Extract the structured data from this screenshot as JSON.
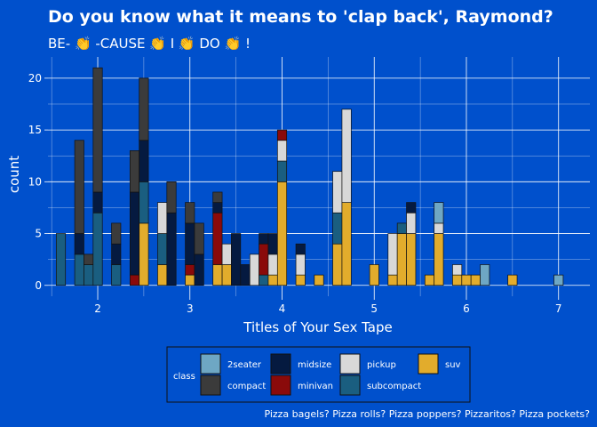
{
  "chart_data": {
    "type": "bar",
    "subtype": "stacked-histogram",
    "title": "Do you know what it means to 'clap back', Raymond?",
    "subtitle": "BE- 👏 -CAUSE 👏 I 👏 DO 👏 !",
    "xlabel": "Titles of Your Sex Tape",
    "ylabel": "count",
    "caption": "Pizza bagels? Pizza rolls? Pizza poppers? Pizzaritos? Pizza pockets?",
    "xlim": [
      1.46,
      7.34
    ],
    "ylim": [
      -1.05,
      22.05
    ],
    "x_ticks": [
      2,
      3,
      4,
      5,
      6,
      7
    ],
    "y_ticks": [
      0,
      5,
      10,
      15,
      20
    ],
    "grid": true,
    "binwidth": 0.1,
    "legend": {
      "title": "class",
      "position": "bottom",
      "entries": [
        "2seater",
        "compact",
        "midsize",
        "minivan",
        "pickup",
        "subcompact",
        "suv"
      ]
    },
    "colors": {
      "2seater": "#6ea7c4",
      "compact": "#3b3b3b",
      "midsize": "#051a40",
      "minivan": "#8a0a0a",
      "pickup": "#d8d8d8",
      "subcompact": "#1a5e80",
      "suv": "#e2ac2c"
    },
    "bins": [
      {
        "x": 1.6,
        "2seater": 0,
        "compact": 0,
        "midsize": 0,
        "minivan": 0,
        "pickup": 0,
        "subcompact": 5,
        "suv": 0
      },
      {
        "x": 1.8,
        "2seater": 0,
        "compact": 9,
        "midsize": 2,
        "minivan": 0,
        "pickup": 0,
        "subcompact": 3,
        "suv": 0
      },
      {
        "x": 1.9,
        "2seater": 0,
        "compact": 1,
        "midsize": 0,
        "minivan": 0,
        "pickup": 0,
        "subcompact": 2,
        "suv": 0
      },
      {
        "x": 2.0,
        "2seater": 0,
        "compact": 12,
        "midsize": 2,
        "minivan": 0,
        "pickup": 0,
        "subcompact": 7,
        "suv": 0
      },
      {
        "x": 2.2,
        "2seater": 0,
        "compact": 2,
        "midsize": 2,
        "minivan": 0,
        "pickup": 0,
        "subcompact": 2,
        "suv": 0
      },
      {
        "x": 2.4,
        "2seater": 0,
        "compact": 4,
        "midsize": 8,
        "minivan": 1,
        "pickup": 0,
        "subcompact": 0,
        "suv": 0
      },
      {
        "x": 2.5,
        "2seater": 0,
        "compact": 6,
        "midsize": 4,
        "minivan": 0,
        "pickup": 0,
        "subcompact": 4,
        "suv": 6
      },
      {
        "x": 2.7,
        "2seater": 0,
        "compact": 0,
        "midsize": 0,
        "minivan": 0,
        "pickup": 3,
        "subcompact": 3,
        "suv": 2
      },
      {
        "x": 2.8,
        "2seater": 0,
        "compact": 3,
        "midsize": 7,
        "minivan": 0,
        "pickup": 0,
        "subcompact": 0,
        "suv": 0
      },
      {
        "x": 3.0,
        "2seater": 0,
        "compact": 2,
        "midsize": 4,
        "minivan": 1,
        "pickup": 0,
        "subcompact": 0,
        "suv": 1
      },
      {
        "x": 3.1,
        "2seater": 0,
        "compact": 3,
        "midsize": 3,
        "minivan": 0,
        "pickup": 0,
        "subcompact": 0,
        "suv": 0
      },
      {
        "x": 3.3,
        "2seater": 0,
        "compact": 1,
        "midsize": 1,
        "minivan": 5,
        "pickup": 0,
        "subcompact": 0,
        "suv": 2
      },
      {
        "x": 3.4,
        "2seater": 0,
        "compact": 0,
        "midsize": 0,
        "minivan": 0,
        "pickup": 2,
        "subcompact": 0,
        "suv": 2
      },
      {
        "x": 3.5,
        "2seater": 0,
        "compact": 0,
        "midsize": 5,
        "minivan": 0,
        "pickup": 0,
        "subcompact": 0,
        "suv": 0
      },
      {
        "x": 3.6,
        "2seater": 0,
        "compact": 0,
        "midsize": 2,
        "minivan": 0,
        "pickup": 0,
        "subcompact": 0,
        "suv": 0
      },
      {
        "x": 3.7,
        "2seater": 0,
        "compact": 0,
        "midsize": 0,
        "minivan": 0,
        "pickup": 3,
        "subcompact": 0,
        "suv": 0
      },
      {
        "x": 3.8,
        "2seater": 0,
        "compact": 0,
        "midsize": 1,
        "minivan": 3,
        "pickup": 0,
        "subcompact": 1,
        "suv": 0
      },
      {
        "x": 3.9,
        "2seater": 0,
        "compact": 0,
        "midsize": 2,
        "minivan": 0,
        "pickup": 2,
        "subcompact": 0,
        "suv": 1
      },
      {
        "x": 4.0,
        "2seater": 0,
        "compact": 0,
        "midsize": 0,
        "minivan": 1,
        "pickup": 2,
        "subcompact": 2,
        "suv": 10
      },
      {
        "x": 4.2,
        "2seater": 0,
        "compact": 0,
        "midsize": 1,
        "minivan": 0,
        "pickup": 2,
        "subcompact": 0,
        "suv": 1
      },
      {
        "x": 4.4,
        "2seater": 0,
        "compact": 0,
        "midsize": 0,
        "minivan": 0,
        "pickup": 0,
        "subcompact": 0,
        "suv": 1
      },
      {
        "x": 4.6,
        "2seater": 0,
        "compact": 0,
        "midsize": 0,
        "minivan": 0,
        "pickup": 4,
        "subcompact": 3,
        "suv": 4
      },
      {
        "x": 4.7,
        "2seater": 0,
        "compact": 0,
        "midsize": 0,
        "minivan": 0,
        "pickup": 9,
        "subcompact": 0,
        "suv": 8
      },
      {
        "x": 5.0,
        "2seater": 0,
        "compact": 0,
        "midsize": 0,
        "minivan": 0,
        "pickup": 0,
        "subcompact": 0,
        "suv": 2
      },
      {
        "x": 5.2,
        "2seater": 0,
        "compact": 0,
        "midsize": 0,
        "minivan": 0,
        "pickup": 4,
        "subcompact": 0,
        "suv": 1
      },
      {
        "x": 5.3,
        "2seater": 0,
        "compact": 0,
        "midsize": 0,
        "minivan": 0,
        "pickup": 0,
        "subcompact": 1,
        "suv": 5
      },
      {
        "x": 5.4,
        "2seater": 0,
        "compact": 0,
        "midsize": 1,
        "minivan": 0,
        "pickup": 2,
        "subcompact": 0,
        "suv": 5
      },
      {
        "x": 5.6,
        "2seater": 0,
        "compact": 0,
        "midsize": 0,
        "minivan": 0,
        "pickup": 0,
        "subcompact": 0,
        "suv": 1
      },
      {
        "x": 5.7,
        "2seater": 2,
        "compact": 0,
        "midsize": 0,
        "minivan": 0,
        "pickup": 1,
        "subcompact": 0,
        "suv": 5
      },
      {
        "x": 5.9,
        "2seater": 0,
        "compact": 0,
        "midsize": 0,
        "minivan": 0,
        "pickup": 1,
        "subcompact": 0,
        "suv": 1
      },
      {
        "x": 6.0,
        "2seater": 0,
        "compact": 0,
        "midsize": 0,
        "minivan": 0,
        "pickup": 0,
        "subcompact": 0,
        "suv": 1
      },
      {
        "x": 6.1,
        "2seater": 0,
        "compact": 0,
        "midsize": 0,
        "minivan": 0,
        "pickup": 0,
        "subcompact": 0,
        "suv": 1
      },
      {
        "x": 6.2,
        "2seater": 2,
        "compact": 0,
        "midsize": 0,
        "minivan": 0,
        "pickup": 0,
        "subcompact": 0,
        "suv": 0
      },
      {
        "x": 6.5,
        "2seater": 0,
        "compact": 0,
        "midsize": 0,
        "minivan": 0,
        "pickup": 0,
        "subcompact": 0,
        "suv": 1
      },
      {
        "x": 7.0,
        "2seater": 1,
        "compact": 0,
        "midsize": 0,
        "minivan": 0,
        "pickup": 0,
        "subcompact": 0,
        "suv": 0
      }
    ]
  },
  "theme": {
    "background": "#0050cc",
    "grid": "#ffffff",
    "text": "#ffffff",
    "bar_outline": "#111111"
  }
}
